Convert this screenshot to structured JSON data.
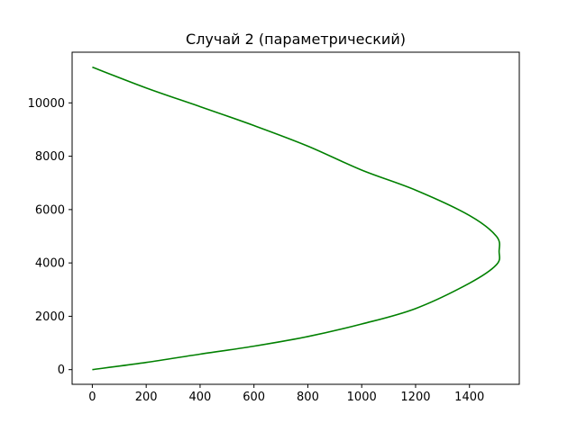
{
  "chart_data": {
    "type": "line",
    "title": "Случай 2 (параметрический)",
    "xlabel": "",
    "ylabel": "",
    "xlim": [
      -75,
      1585
    ],
    "ylim": [
      -550,
      11900
    ],
    "xticks": [
      0,
      200,
      400,
      600,
      800,
      1000,
      1200,
      1400
    ],
    "yticks": [
      0,
      2000,
      4000,
      6000,
      8000,
      10000
    ],
    "grid": false,
    "legend": "none",
    "series": [
      {
        "color": "#008000",
        "x": [
          0,
          200,
          400,
          600,
          800,
          1000,
          1200,
          1400,
          1500,
          1510,
          1500,
          1400,
          1200,
          1000,
          800,
          600,
          400,
          200,
          0
        ],
        "y": [
          0,
          270,
          580,
          880,
          1240,
          1710,
          2290,
          3240,
          3930,
          4430,
          5000,
          5780,
          6730,
          7480,
          8380,
          9150,
          9860,
          10560,
          11340
        ]
      }
    ]
  }
}
